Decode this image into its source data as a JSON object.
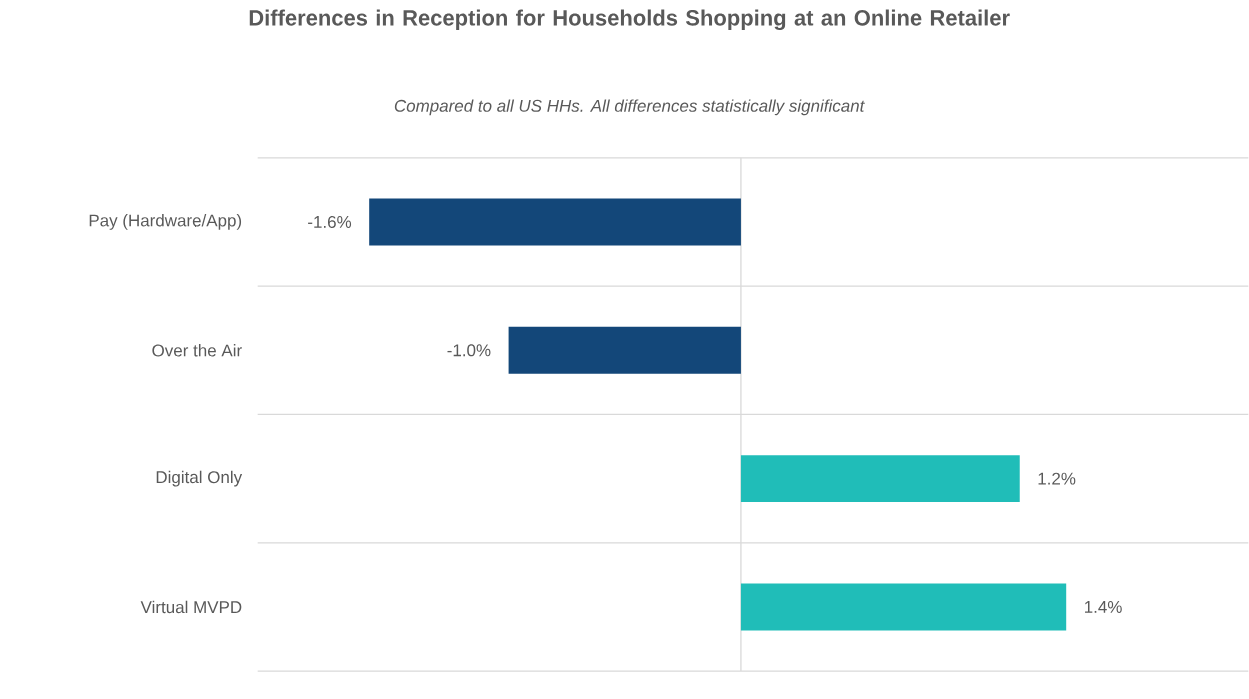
{
  "chart_data": {
    "type": "bar",
    "orientation": "horizontal",
    "title": "Differences in Reception for Households Shopping at an Online Retailer",
    "subtitle": "Compared to all US HHs. All differences statistically significant",
    "categories": [
      "Pay (Hardware/App)",
      "Over the Air",
      "Digital Only",
      "Virtual MVPD"
    ],
    "values": [
      -1.6,
      -1.0,
      1.2,
      1.4
    ],
    "colors": [
      "#134779",
      "#134779",
      "#20bdb8",
      "#20bdb8"
    ],
    "value_labels": [
      "-1.6%",
      "-1.0%",
      "1.2%",
      "1.4%"
    ],
    "grid": "y",
    "tick_labels": "y"
  }
}
